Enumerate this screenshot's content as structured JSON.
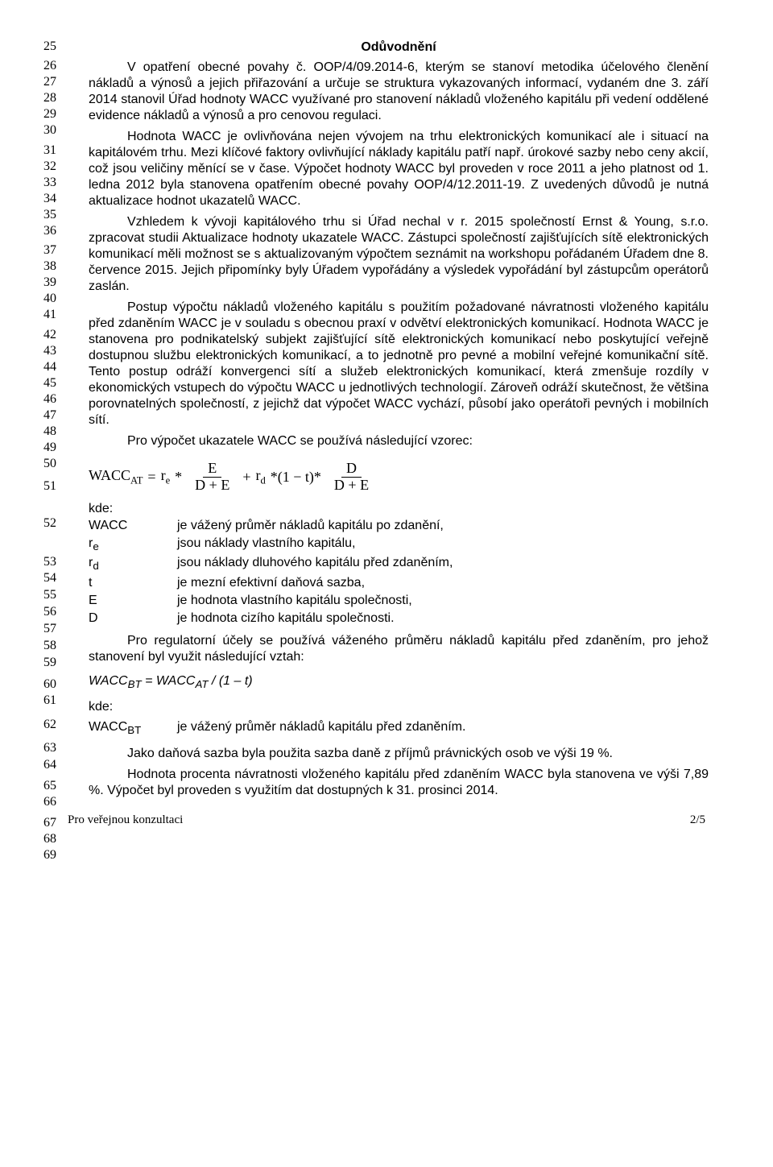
{
  "lineNumbers": {
    "values": [
      25,
      26,
      27,
      28,
      29,
      30,
      31,
      32,
      33,
      34,
      35,
      36,
      37,
      38,
      39,
      40,
      41,
      42,
      43,
      44,
      45,
      46,
      47,
      48,
      49,
      50,
      51,
      52,
      53,
      54,
      55,
      56,
      57,
      58,
      59,
      60,
      61,
      62,
      63,
      64,
      65,
      66,
      67,
      68,
      69
    ],
    "tops": [
      0,
      24,
      44,
      64,
      84,
      104,
      129,
      149,
      169,
      189,
      209,
      229,
      253,
      273,
      293,
      313,
      333,
      358,
      378,
      398,
      418,
      438,
      458,
      478,
      498,
      518,
      546,
      592,
      640,
      660,
      681,
      702,
      723,
      744,
      765,
      792,
      812,
      842,
      871,
      892,
      918,
      938,
      964,
      984,
      1004
    ]
  },
  "title": "Odůvodnění",
  "paragraphs": {
    "p1": "V opatření obecné povahy č. OOP/4/09.2014-6, kterým se stanoví metodika účelového členění nákladů a výnosů a jejich přiřazování a určuje se struktura vykazovaných informací, vydaném dne 3. září 2014 stanovil Úřad hodnoty WACC využívané pro stanovení nákladů vloženého kapitálu při vedení oddělené evidence nákladů a výnosů a pro cenovou regulaci.",
    "p2": "Hodnota WACC je ovlivňována nejen vývojem na trhu elektronických komunikací ale i situací na kapitálovém trhu. Mezi klíčové faktory ovlivňující náklady kapitálu patří např. úrokové sazby nebo ceny akcií, což jsou veličiny měnící se v čase. Výpočet hodnoty WACC byl proveden v roce 2011 a jeho platnost od 1. ledna 2012 byla stanovena opatřením obecné povahy OOP/4/12.2011-19. Z uvedených důvodů je nutná aktualizace hodnot ukazatelů WACC.",
    "p3": "Vzhledem k vývoji kapitálového trhu si Úřad nechal v r. 2015 společností Ernst & Young, s.r.o. zpracovat studii Aktualizace hodnoty ukazatele WACC. Zástupci společností zajišťujících sítě elektronických komunikací měli možnost se s aktualizovaným výpočtem seznámit na workshopu pořádaném Úřadem dne 8. července 2015. Jejich připomínky byly Úřadem vypořádány a výsledek vypořádání byl zástupcům operátorů zaslán.",
    "p4": "Postup výpočtu nákladů vloženého kapitálu s použitím požadované návratnosti vloženého kapitálu před zdaněním WACC je v souladu s obecnou praxí v odvětví elektronických komunikací. Hodnota WACC je stanovena pro podnikatelský subjekt zajišťující sítě elektronických komunikací nebo poskytující veřejně dostupnou službu elektronických komunikací, a to jednotně pro pevné a mobilní veřejné komunikační sítě. Tento postup odráží konvergenci sítí a služeb elektronických komunikací, která zmenšuje rozdíly v ekonomických vstupech do výpočtu WACC u jednotlivých technologií. Zároveň odráží skutečnost, že většina porovnatelných společností, z jejichž dat výpočet WACC vychází, působí jako operátoři pevných i mobilních sítí.",
    "p5": "Pro výpočet ukazatele WACC se používá následující vzorec:",
    "p6": "Pro regulatorní účely se používá váženého průměru nákladů kapitálu před zdaněním, pro jehož stanovení byl využit následující vztah:",
    "p7": "Jako daňová sazba byla použita sazba daně z příjmů právnických osob ve výši 19 %.",
    "p8": "Hodnota procenta návratnosti vloženého kapitálu před zdaněním WACC byla stanovena ve výši 7,89 %. Výpočet byl proveden s využitím dat dostupných k 31. prosinci 2014."
  },
  "formula": {
    "lhs": "WACC",
    "lhs_sub": "AT",
    "eq": "=",
    "re": "r",
    "re_sub": "e",
    "star": "*",
    "num1": "E",
    "den1": "D + E",
    "plus": "+",
    "rd": "r",
    "rd_sub": "d",
    "mid": "*(1 − t)*",
    "num2": "D",
    "den2": "D + E"
  },
  "kde": "kde:",
  "defs": [
    {
      "sym": "WACC",
      "txt": "je vážený průměr nákladů kapitálu po zdanění,"
    },
    {
      "sym": "rₑ",
      "txt": "jsou náklady vlastního kapitálu,"
    },
    {
      "sym": "r_d",
      "txt": "jsou náklady dluhového kapitálu před zdaněním,"
    },
    {
      "sym": "t",
      "txt": "je mezní efektivní daňová sazba,"
    },
    {
      "sym": "E",
      "txt": "je hodnota vlastního kapitálu společnosti,"
    },
    {
      "sym": "D",
      "txt": "je hodnota cizího kapitálu společnosti."
    }
  ],
  "formula2": "WACCᵦₜ = WACCₐₜ / (1 – t)",
  "formula2_html": "WACC<sub>BT</sub> = WACC<sub>AT</sub> / (1 – t)",
  "kde2": "kde:",
  "def2": {
    "sym": "WACCᵦₜ",
    "sym_html": "WACC<sub>BT</sub>",
    "txt": "je vážený průměr nákladů kapitálu před zdaněním."
  },
  "footer": {
    "left": "Pro veřejnou konzultaci",
    "right": "2/5"
  }
}
